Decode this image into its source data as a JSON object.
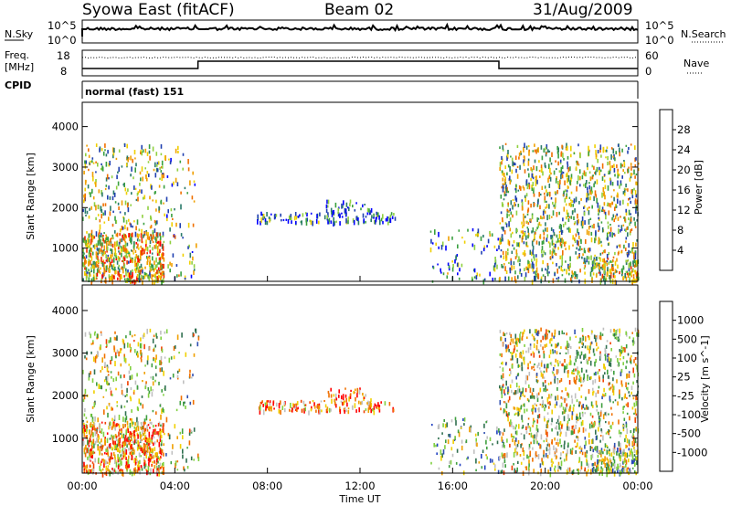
{
  "header": {
    "station": "Syowa East (fitACF)",
    "beam": "Beam 02",
    "date": "31/Aug/2009"
  },
  "panels": {
    "noise": {
      "left_label": "N.Sky",
      "right_label": "N.Search",
      "left_ticks": [
        "10^5",
        "10^0"
      ],
      "right_ticks": [
        "10^5",
        "10^0"
      ]
    },
    "freq": {
      "left_label_1": "Freq.",
      "left_label_2": "[MHz]",
      "right_label": "Nave",
      "left_ticks": [
        "18",
        "8"
      ],
      "right_ticks": [
        "60",
        "0"
      ]
    },
    "cpid": {
      "label": "CPID",
      "mode_text": "normal (fast) 151"
    }
  },
  "chart_data": [
    {
      "type": "heatmap",
      "title": "",
      "xlabel": "Time UT",
      "ylabel": "Slant Range [km]",
      "x_ticks": [
        "00:00",
        "04:00",
        "08:00",
        "12:00",
        "16:00",
        "20:00",
        "00:00"
      ],
      "y_ticks": [
        1000,
        2000,
        3000,
        4000
      ],
      "xlim_hours": [
        0,
        24
      ],
      "ylim_km": [
        180,
        4600
      ],
      "colorbar": {
        "label": "Power [dB]",
        "ticks": [
          "4",
          "8",
          "12",
          "16",
          "20",
          "24",
          "28"
        ],
        "colors": [
          "#0000ff",
          "#2040b0",
          "#2a7a6a",
          "#3aa040",
          "#90d040",
          "#f0d000",
          "#f0a000",
          "#f07000",
          "#f03000",
          "#ff0000"
        ]
      },
      "scatter_regions": [
        {
          "t0": 0.0,
          "t1": 3.5,
          "r0": 200,
          "r1": 3600,
          "density": 0.18,
          "value_bias": 0.45
        },
        {
          "t0": 0.0,
          "t1": 3.5,
          "r0": 200,
          "r1": 1400,
          "density": 0.55,
          "value_bias": 0.6
        },
        {
          "t0": 3.5,
          "t1": 5.0,
          "r0": 200,
          "r1": 3600,
          "density": 0.08,
          "value_bias": 0.4
        },
        {
          "t0": 7.5,
          "t1": 13.5,
          "r0": 1650,
          "r1": 1900,
          "density": 0.45,
          "value_bias": 0.2
        },
        {
          "t0": 10.5,
          "t1": 12.5,
          "r0": 1900,
          "r1": 2200,
          "density": 0.3,
          "value_bias": 0.15
        },
        {
          "t0": 15.0,
          "t1": 18.0,
          "r0": 200,
          "r1": 1500,
          "density": 0.12,
          "value_bias": 0.3
        },
        {
          "t0": 18.0,
          "t1": 24.0,
          "r0": 200,
          "r1": 3600,
          "density": 0.28,
          "value_bias": 0.45
        },
        {
          "t0": 22.0,
          "t1": 24.0,
          "r0": 200,
          "r1": 800,
          "density": 0.45,
          "value_bias": 0.55
        }
      ]
    },
    {
      "type": "heatmap",
      "title": "",
      "xlabel": "Time UT",
      "ylabel": "Slant Range [km]",
      "x_ticks": [
        "00:00",
        "04:00",
        "08:00",
        "12:00",
        "16:00",
        "20:00",
        "00:00"
      ],
      "y_ticks": [
        1000,
        2000,
        3000,
        4000
      ],
      "xlim_hours": [
        0,
        24
      ],
      "ylim_km": [
        180,
        4600
      ],
      "colorbar": {
        "label": "Velocity [m s^-1]",
        "ticks": [
          "1000",
          "500",
          "100",
          "25",
          "-25",
          "-100",
          "-500",
          "-1000"
        ],
        "colors": [
          "#2040c0",
          "#3050b0",
          "#307050",
          "#40a040",
          "#80d040",
          "#c0c0c0",
          "#f0d000",
          "#f0a000",
          "#f07000",
          "#f04000",
          "#ff0000"
        ]
      },
      "scatter_regions": [
        {
          "t0": 0.0,
          "t1": 3.5,
          "r0": 200,
          "r1": 3600,
          "density": 0.18,
          "value_bias": 0.55
        },
        {
          "t0": 0.0,
          "t1": 3.5,
          "r0": 200,
          "r1": 1400,
          "density": 0.55,
          "value_bias": 0.7
        },
        {
          "t0": 3.5,
          "t1": 5.0,
          "r0": 200,
          "r1": 3600,
          "density": 0.08,
          "value_bias": 0.5
        },
        {
          "t0": 7.5,
          "t1": 13.5,
          "r0": 1650,
          "r1": 1900,
          "density": 0.45,
          "value_bias": 0.75
        },
        {
          "t0": 10.5,
          "t1": 12.5,
          "r0": 1900,
          "r1": 2200,
          "density": 0.3,
          "value_bias": 0.8
        },
        {
          "t0": 15.0,
          "t1": 18.0,
          "r0": 200,
          "r1": 1500,
          "density": 0.12,
          "value_bias": 0.35
        },
        {
          "t0": 18.0,
          "t1": 24.0,
          "r0": 200,
          "r1": 3600,
          "density": 0.28,
          "value_bias": 0.5
        },
        {
          "t0": 22.0,
          "t1": 24.0,
          "r0": 200,
          "r1": 800,
          "density": 0.45,
          "value_bias": 0.4
        }
      ]
    }
  ]
}
